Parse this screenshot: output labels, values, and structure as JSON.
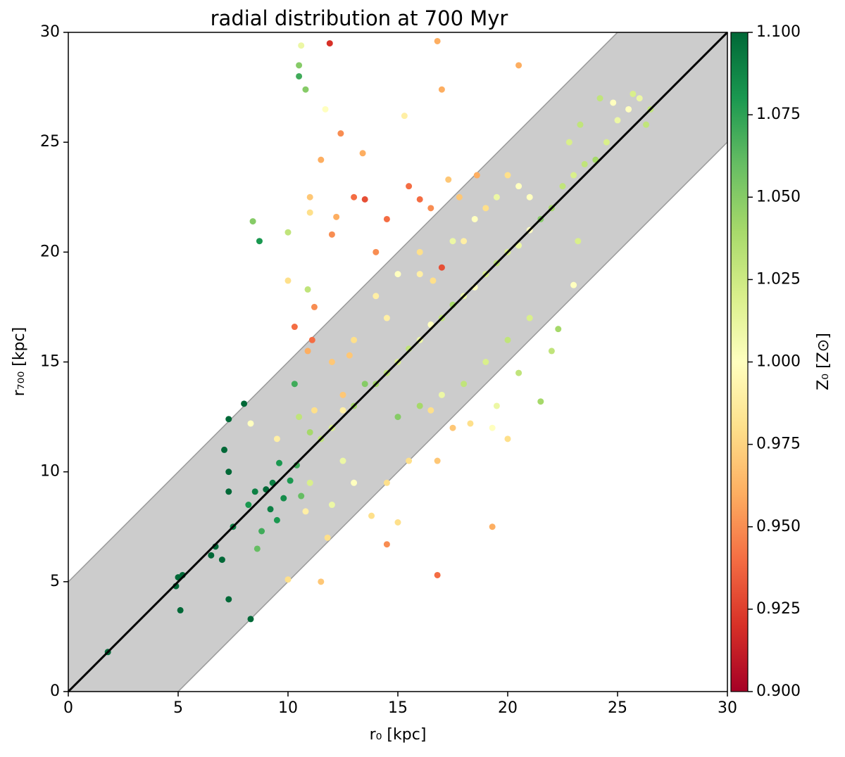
{
  "chart_data": {
    "type": "scatter",
    "title": "radial distribution at 700 Myr",
    "xlabel": "r₀ [kpc]",
    "ylabel": "r₇₀₀ [kpc]",
    "colorbar_label": "Z₀ [Z⊙]",
    "xlim": [
      0,
      30
    ],
    "ylim": [
      0,
      30
    ],
    "xticks": [
      0,
      5,
      10,
      15,
      20,
      25,
      30
    ],
    "yticks": [
      0,
      5,
      10,
      15,
      20,
      25,
      30
    ],
    "clim": [
      0.9,
      1.1
    ],
    "cticks": [
      {
        "value": 0.9,
        "label": "0.900"
      },
      {
        "value": 0.925,
        "label": "0.925"
      },
      {
        "value": 0.95,
        "label": "0.950"
      },
      {
        "value": 0.975,
        "label": "0.975"
      },
      {
        "value": 1.0,
        "label": "1.000"
      },
      {
        "value": 1.025,
        "label": "1.025"
      },
      {
        "value": 1.05,
        "label": "1.050"
      },
      {
        "value": 1.075,
        "label": "1.075"
      },
      {
        "value": 1.1,
        "label": "1.100"
      }
    ],
    "series": [
      {
        "x": [
          1.8,
          4.9,
          5,
          5.2,
          5.1,
          6.5,
          6.7,
          7,
          7.3,
          8.3,
          7.3,
          7.1,
          7.3,
          7.3,
          8,
          7.5,
          8.2,
          8.5,
          9,
          9.3,
          9.6,
          9.2,
          9.8,
          10.1,
          10.4,
          9.5,
          8.8,
          8.6,
          10.6,
          10.3,
          8.7,
          8.4,
          10.5,
          10.5,
          10.8,
          11.9,
          10.6,
          16.8,
          17,
          20.5,
          15.3,
          12.4,
          11.7,
          11.5,
          13.4,
          12.2,
          12,
          13,
          13.5,
          14.5,
          14,
          15.5,
          16,
          16.5,
          17.3,
          17.8,
          18.6,
          19,
          16,
          17,
          18,
          16.6,
          11.2,
          11.1,
          10.9,
          10.3,
          12.8,
          11.5,
          12,
          12.5,
          13,
          13.5,
          14,
          14.5,
          15,
          15.5,
          16,
          16.5,
          17,
          17.5,
          18,
          18.5,
          19,
          19.5,
          20,
          20.5,
          21,
          21.5,
          22,
          22.5,
          23,
          23.5,
          24,
          24.5,
          25,
          25.5,
          26,
          26.5,
          24.8,
          26.3,
          25.7,
          15,
          16,
          17,
          18,
          19,
          20,
          21,
          19.5,
          20.5,
          22,
          21.5,
          18.3,
          19.3,
          20,
          17.5,
          16.5,
          15.5,
          16.8,
          14.5,
          13.8,
          15,
          19.3,
          16.8,
          14.5,
          11.5,
          10,
          12,
          13,
          11,
          12.5,
          10.8,
          11.8,
          23,
          22.3,
          23.2,
          12,
          13,
          14,
          14.5,
          15,
          16,
          17.5,
          18.5,
          19.5,
          20.5,
          21,
          12.5,
          11.2,
          10.5,
          11,
          9.5,
          8.3,
          20,
          22.8,
          23.3,
          24.2,
          11,
          11,
          10,
          10.9,
          10
        ],
        "values": [
          1.8,
          4.8,
          5.2,
          5.3,
          3.7,
          6.2,
          6.6,
          6,
          4.2,
          3.3,
          12.4,
          11,
          10,
          9.1,
          13.1,
          7.5,
          8.5,
          9.1,
          9.2,
          9.5,
          10.4,
          8.3,
          8.8,
          9.6,
          10.3,
          7.8,
          7.3,
          6.5,
          8.9,
          14,
          20.5,
          21.4,
          28.5,
          28,
          27.4,
          29.5,
          29.4,
          29.6,
          27.4,
          28.5,
          26.2,
          25.4,
          26.5,
          24.2,
          24.5,
          21.6,
          20.8,
          22.5,
          22.4,
          21.5,
          20,
          23,
          22.4,
          22,
          23.3,
          22.5,
          23.5,
          22,
          20,
          19.3,
          20.5,
          18.7,
          17.5,
          16,
          15.5,
          16.6,
          15.3,
          11.5,
          12,
          12.8,
          13,
          14,
          14,
          14.5,
          15,
          15.6,
          16,
          16.7,
          17,
          17.6,
          18,
          18.4,
          19,
          19.5,
          20,
          20.3,
          21,
          21.5,
          22,
          23,
          23.5,
          24,
          24.2,
          25,
          26,
          26.5,
          27,
          26.5,
          26.8,
          25.8,
          27.2,
          12.5,
          13,
          13.5,
          14,
          15,
          16,
          17,
          13,
          14.5,
          15.5,
          13.2,
          12.2,
          12,
          11.5,
          12,
          12.8,
          10.5,
          10.5,
          9.5,
          8,
          7.7,
          7.5,
          5.3,
          6.7,
          5,
          5.1,
          8.5,
          9.5,
          9.5,
          10.5,
          8.2,
          7,
          18.5,
          16.5,
          20.5,
          15,
          16,
          18,
          17,
          19,
          19,
          20.5,
          21.5,
          22.5,
          23,
          22.5,
          13.5,
          12.8,
          12.5,
          11.8,
          11.5,
          12.2,
          23.5,
          25,
          25.8,
          27,
          22.5,
          21.8,
          18.7,
          18.3,
          20.9
        ],
        "z": [
          1.1,
          1.1,
          1.1,
          1.1,
          1.1,
          1.1,
          1.1,
          1.1,
          1.1,
          1.1,
          1.1,
          1.1,
          1.1,
          1.1,
          1.1,
          1.09,
          1.08,
          1.09,
          1.1,
          1.09,
          1.08,
          1.09,
          1.085,
          1.08,
          1.07,
          1.08,
          1.07,
          1.06,
          1.06,
          1.07,
          1.08,
          1.05,
          1.05,
          1.07,
          1.05,
          0.92,
          1.01,
          0.96,
          0.96,
          0.96,
          0.99,
          0.95,
          1.0,
          0.96,
          0.96,
          0.96,
          0.95,
          0.94,
          0.93,
          0.94,
          0.95,
          0.94,
          0.94,
          0.95,
          0.97,
          0.97,
          0.96,
          0.98,
          0.98,
          0.93,
          0.99,
          0.98,
          0.95,
          0.94,
          0.96,
          0.94,
          0.97,
          1.03,
          1.02,
          0.99,
          1.04,
          1.05,
          1.04,
          1.03,
          1.02,
          1.03,
          1.01,
          1.0,
          1.03,
          1.04,
          1.01,
          1.0,
          1.02,
          1.03,
          1.02,
          1.01,
          1.0,
          1.05,
          1.04,
          1.03,
          1.02,
          1.03,
          1.04,
          1.02,
          1.01,
          1.0,
          1.01,
          1.03,
          1.0,
          1.03,
          1.02,
          1.05,
          1.04,
          1.01,
          1.03,
          1.02,
          1.03,
          1.02,
          1.01,
          1.03,
          1.03,
          1.04,
          0.98,
          1.0,
          0.98,
          0.97,
          0.98,
          0.98,
          0.97,
          0.98,
          0.98,
          0.98,
          0.96,
          0.94,
          0.95,
          0.97,
          0.98,
          1.01,
          1.0,
          1.02,
          1.01,
          0.99,
          0.98,
          1.0,
          1.04,
          1.02,
          0.97,
          0.98,
          0.99,
          0.99,
          1.0,
          0.99,
          1.01,
          1.0,
          1.01,
          1.0,
          1.0,
          0.97,
          0.98,
          1.03,
          1.04,
          0.99,
          1.0,
          0.98,
          1.02,
          1.03,
          1.03,
          0.97,
          0.98,
          0.98,
          1.03,
          1.03
        ]
      }
    ]
  }
}
